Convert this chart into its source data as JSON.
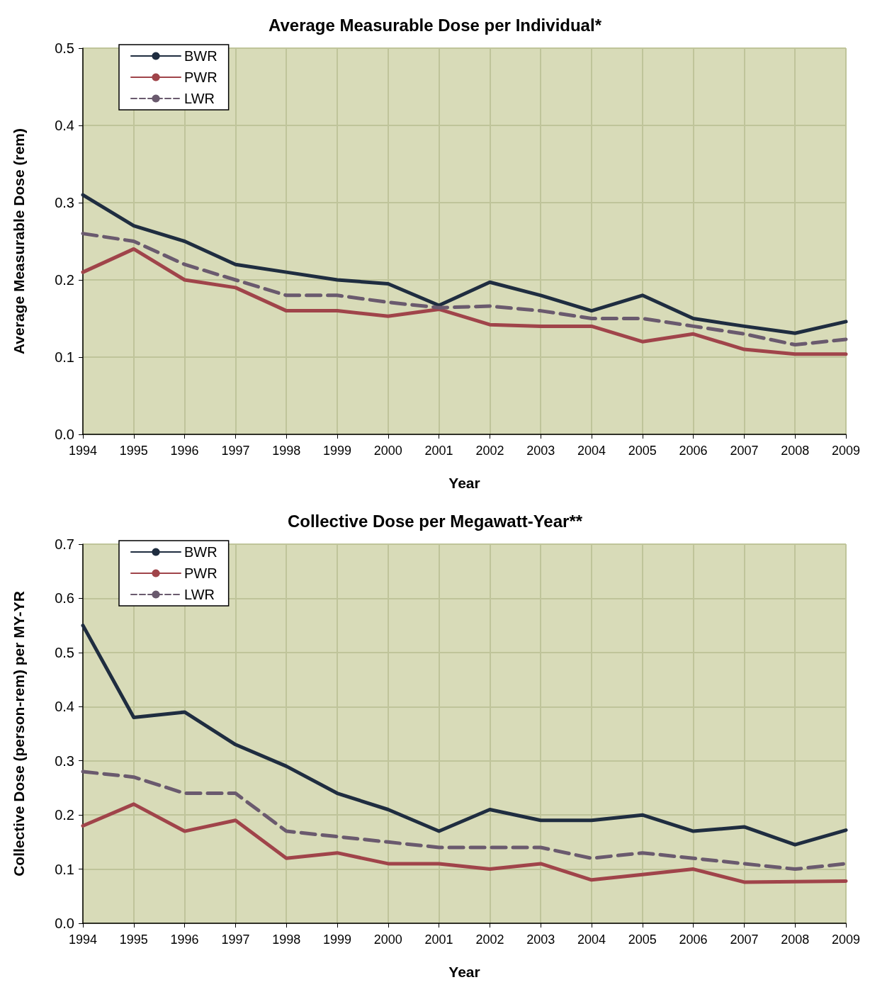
{
  "chart_data": [
    {
      "type": "line",
      "title": "Average Measurable Dose per Individual*",
      "xlabel": "Year",
      "ylabel": "Average Measurable Dose (rem)",
      "categories": [
        "1994",
        "1995",
        "1996",
        "1997",
        "1998",
        "1999",
        "2000",
        "2001",
        "2002",
        "2003",
        "2004",
        "2005",
        "2006",
        "2007",
        "2008",
        "2009"
      ],
      "ylim": [
        0,
        0.5
      ],
      "yticks": [
        {
          "value": 0,
          "label": "0.0"
        },
        0.1,
        0.2,
        0.3,
        0.4,
        0.5
      ],
      "grid": true,
      "legend": "top left",
      "marker": "none",
      "series": [
        {
          "name": "BWR",
          "color": "#1f2d40",
          "line_style": "solid",
          "values": [
            0.31,
            0.27,
            0.25,
            0.22,
            0.21,
            0.2,
            0.195,
            0.167,
            0.197,
            0.18,
            0.16,
            0.18,
            0.15,
            0.14,
            0.131,
            0.146
          ]
        },
        {
          "name": "PWR",
          "color": "#a0444a",
          "line_style": "solid",
          "values": [
            0.21,
            0.24,
            0.2,
            0.19,
            0.16,
            0.16,
            0.153,
            0.162,
            0.142,
            0.14,
            0.14,
            0.12,
            0.13,
            0.11,
            0.104,
            0.104
          ]
        },
        {
          "name": "LWR",
          "color": "#6a5a6e",
          "line_style": "dashed",
          "values": [
            0.26,
            0.25,
            0.22,
            0.2,
            0.18,
            0.18,
            0.171,
            0.164,
            0.166,
            0.16,
            0.15,
            0.15,
            0.14,
            0.13,
            0.116,
            0.123
          ]
        }
      ]
    },
    {
      "type": "line",
      "title": "Collective Dose per Megawatt-Year**",
      "xlabel": "Year",
      "ylabel": "Collective Dose (person-rem) per MY-YR",
      "categories": [
        "1994",
        "1995",
        "1996",
        "1997",
        "1998",
        "1999",
        "2000",
        "2001",
        "2002",
        "2003",
        "2004",
        "2005",
        "2006",
        "2007",
        "2008",
        "2009"
      ],
      "ylim": [
        0,
        0.7
      ],
      "yticks": [
        {
          "value": 0,
          "label": "0.0"
        },
        0.1,
        0.2,
        0.3,
        0.4,
        0.5,
        0.6,
        0.7
      ],
      "grid": true,
      "legend": "top left",
      "marker": "none",
      "series": [
        {
          "name": "BWR",
          "color": "#1f2d40",
          "line_style": "solid",
          "values": [
            0.55,
            0.38,
            0.39,
            0.33,
            0.29,
            0.24,
            0.21,
            0.17,
            0.21,
            0.19,
            0.19,
            0.2,
            0.17,
            0.178,
            0.145,
            0.172
          ]
        },
        {
          "name": "PWR",
          "color": "#a0444a",
          "line_style": "solid",
          "values": [
            0.18,
            0.22,
            0.17,
            0.19,
            0.12,
            0.13,
            0.11,
            0.11,
            0.1,
            0.11,
            0.08,
            0.09,
            0.1,
            0.076,
            0.077,
            0.078
          ]
        },
        {
          "name": "LWR",
          "color": "#6a5a6e",
          "line_style": "dashed",
          "values": [
            0.28,
            0.27,
            0.24,
            0.24,
            0.17,
            0.16,
            0.15,
            0.14,
            0.14,
            0.14,
            0.12,
            0.13,
            0.12,
            0.11,
            0.1,
            0.11
          ]
        }
      ]
    }
  ]
}
